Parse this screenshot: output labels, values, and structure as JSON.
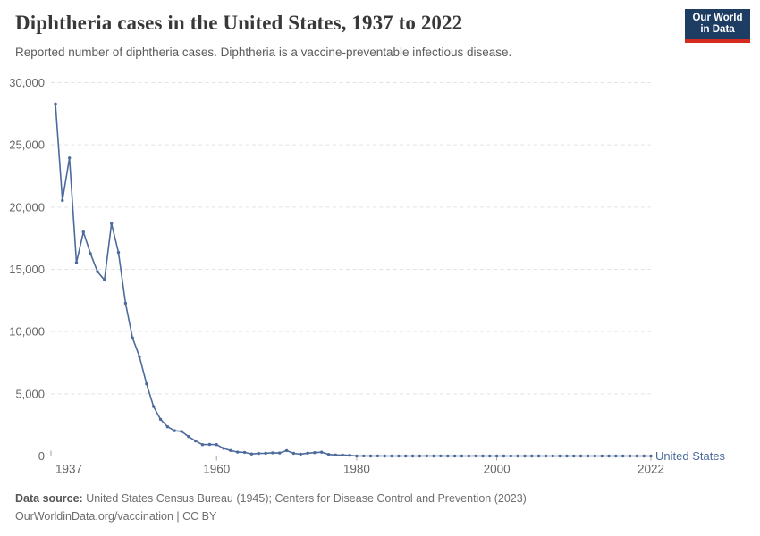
{
  "header": {
    "title": "Diphtheria cases in the United States, 1937 to 2022",
    "subtitle": "Reported number of diphtheria cases. Diphtheria is a vaccine-preventable infectious disease."
  },
  "logo": {
    "line1": "Our World",
    "line2": "in Data",
    "bg_color": "#1d3d63",
    "accent_color": "#d42b21",
    "text_color": "#ffffff"
  },
  "chart_data": {
    "type": "line",
    "title": "Diphtheria cases in the United States, 1937 to 2022",
    "xlabel": "",
    "ylabel": "",
    "xlim": [
      1937,
      2022
    ],
    "ylim": [
      0,
      30000
    ],
    "grid": "horizontal dashed gridlines, on",
    "legend_position": "label at end of line",
    "x_ticks": [
      {
        "value": 1937,
        "label": "1937"
      },
      {
        "value": 1960,
        "label": "1960"
      },
      {
        "value": 1980,
        "label": "1980"
      },
      {
        "value": 2000,
        "label": "2000"
      },
      {
        "value": 2022,
        "label": "2022"
      }
    ],
    "y_ticks": [
      {
        "value": 0,
        "label": "0"
      },
      {
        "value": 5000,
        "label": "5,000"
      },
      {
        "value": 10000,
        "label": "10,000"
      },
      {
        "value": 15000,
        "label": "15,000"
      },
      {
        "value": 20000,
        "label": "20,000"
      },
      {
        "value": 25000,
        "label": "25,000"
      },
      {
        "value": 30000,
        "label": "30,000"
      }
    ],
    "series": [
      {
        "name": "United States",
        "color": "#4c6a9c",
        "years": [
          1937,
          1938,
          1939,
          1940,
          1941,
          1942,
          1943,
          1944,
          1945,
          1946,
          1947,
          1948,
          1949,
          1950,
          1951,
          1952,
          1953,
          1954,
          1955,
          1956,
          1957,
          1958,
          1959,
          1960,
          1961,
          1962,
          1963,
          1964,
          1965,
          1966,
          1967,
          1968,
          1969,
          1970,
          1971,
          1972,
          1973,
          1974,
          1975,
          1976,
          1977,
          1978,
          1979,
          1980,
          1981,
          1982,
          1983,
          1984,
          1985,
          1986,
          1987,
          1988,
          1989,
          1990,
          1991,
          1992,
          1993,
          1994,
          1995,
          1996,
          1997,
          1998,
          1999,
          2000,
          2001,
          2002,
          2003,
          2004,
          2005,
          2006,
          2007,
          2008,
          2009,
          2010,
          2011,
          2012,
          2013,
          2014,
          2015,
          2016,
          2017,
          2018,
          2019,
          2020,
          2021,
          2022
        ],
        "values": [
          28295,
          20536,
          23948,
          15536,
          18000,
          16260,
          14811,
          14150,
          18675,
          16354,
          12272,
          9493,
          7989,
          5796,
          3983,
          2960,
          2355,
          2041,
          1984,
          1568,
          1211,
          918,
          934,
          918,
          617,
          444,
          314,
          293,
          164,
          209,
          219,
          260,
          241,
          435,
          215,
          152,
          228,
          272,
          307,
          128,
          84,
          76,
          59,
          3,
          5,
          2,
          5,
          1,
          3,
          0,
          3,
          2,
          3,
          4,
          2,
          4,
          0,
          2,
          0,
          2,
          4,
          1,
          1,
          1,
          2,
          1,
          1,
          0,
          0,
          0,
          0,
          0,
          0,
          0,
          0,
          1,
          0,
          1,
          0,
          0,
          0,
          1,
          2,
          0,
          0,
          1
        ]
      }
    ]
  },
  "footer": {
    "datasource_label": "Data source:",
    "datasource_text": " United States Census Bureau (1945); Centers for Disease Control and Prevention (2023)",
    "license_line": "OurWorldinData.org/vaccination | CC BY"
  }
}
